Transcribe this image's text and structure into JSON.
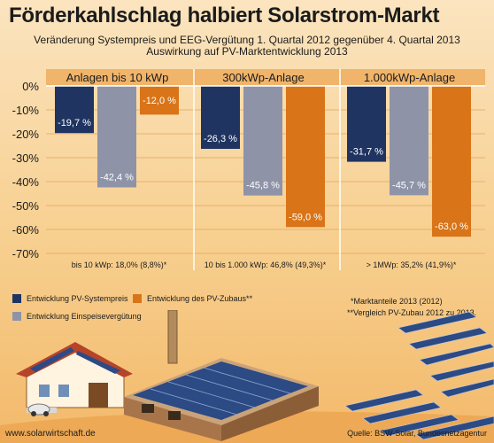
{
  "title": "Förderkahlschlag halbiert Solarstrom-Markt",
  "subtitle_line1": "Veränderung Systempreis und EEG-Vergütung 1. Quartal 2012 gegenüber 4. Quartal 2013",
  "subtitle_line2": "Auswirkung auf PV-Marktentwicklung 2013",
  "colors": {
    "systempreis": "#1f3461",
    "einspeise": "#8f93a8",
    "zubau": "#d97418",
    "band": "#f0b46a"
  },
  "chart_data": {
    "type": "bar",
    "categories": [
      "Anlagen bis 10 kWp",
      "300kWp-Anlage",
      "1.000kWp-Anlage"
    ],
    "series": [
      {
        "name": "Entwicklung PV-Systempreis",
        "values": [
          -19.7,
          -26.3,
          -31.7
        ],
        "labels": [
          "-19,7 %",
          "-26,3 %",
          "-31,7 %"
        ]
      },
      {
        "name": "Entwicklung Einspeisevergütung",
        "values": [
          -42.4,
          -45.8,
          -45.7
        ],
        "labels": [
          "-42,4 %",
          "-45,8 %",
          "-45,7 %"
        ]
      },
      {
        "name": "Entwicklung des PV-Zubaus**",
        "values": [
          -12.0,
          -59.0,
          -63.0
        ],
        "labels": [
          "-12,0 %",
          "-59,0 %",
          "-63,0 %"
        ]
      }
    ],
    "ylim": [
      -70,
      0
    ],
    "yticks": [
      0,
      -10,
      -20,
      -30,
      -40,
      -50,
      -60,
      -70
    ],
    "ytick_labels": [
      "0%",
      "-10%",
      "-20%",
      "-30%",
      "-40%",
      "-50%",
      "-60%",
      "-70%"
    ],
    "market_share_labels": [
      "bis 10 kWp: 18,0% (8,8%)*",
      "10 bis 1.000 kWp: 46,8% (49,3%)*",
      "> 1MWp: 35,2% (41,9%)*"
    ],
    "grid": true,
    "legend_position": "bottom-left"
  },
  "notes": {
    "note1": "*Marktanteile 2013 (2012)",
    "note2": "**Vergleich PV-Zubau  2012 zu 2013."
  },
  "website": "www.solarwirtschaft.de",
  "source": "Quelle: BSW-Solar, Bundesnetzagentur"
}
